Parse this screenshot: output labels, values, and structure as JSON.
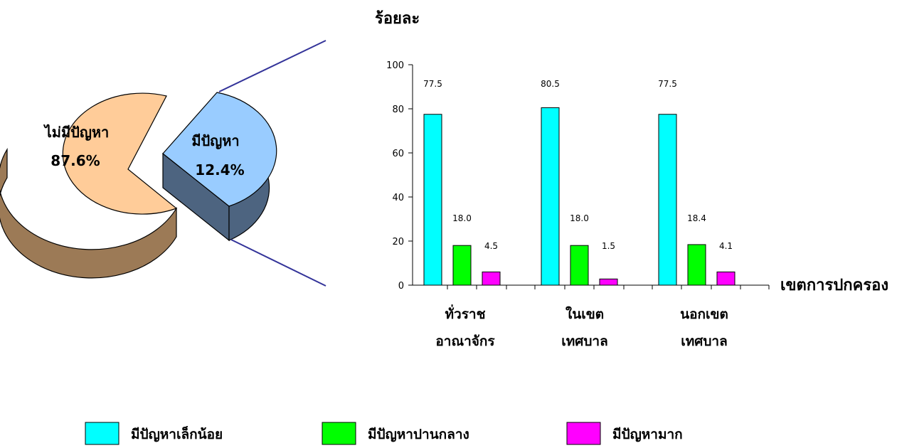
{
  "chart_data": [
    {
      "type": "pie",
      "title": "",
      "slices": [
        {
          "label": "ไม่มีปัญหา",
          "value": 87.6,
          "value_label": "87.6%",
          "color": "#FFCC99",
          "side_color": "#9C7A56"
        },
        {
          "label": "มีปัญหา",
          "value": 12.4,
          "value_label": "12.4%",
          "color": "#99CCFF",
          "side_color": "#4D6480"
        }
      ],
      "exploded": "มีปัญหา",
      "style": "3d"
    },
    {
      "type": "bar",
      "ylabel": "ร้อยละ",
      "xlabel": "เขตการปกครอง",
      "ylim": [
        0,
        100
      ],
      "yticks": [
        "0",
        "20",
        "40",
        "60",
        "80",
        "100"
      ],
      "categories": [
        [
          "ทั่วราช",
          "อาณาจักร"
        ],
        [
          "ในเขต",
          "เทศบาล"
        ],
        [
          "นอกเขต",
          "เทศบาล"
        ]
      ],
      "series": [
        {
          "name": "มีปัญหาเล็กน้อย",
          "color": "#00FFFF",
          "values": [
            77.5,
            80.5,
            77.5
          ],
          "labels": [
            "77.5",
            "80.5",
            "77.5"
          ],
          "display": [
            77.5,
            80.5,
            77.5
          ]
        },
        {
          "name": "มีปัญหาปานกลาง",
          "color": "#00FF00",
          "values": [
            18.0,
            18.0,
            18.4
          ],
          "labels": [
            "18.0",
            "18.0",
            "18.4"
          ],
          "display": [
            18.0,
            18.0,
            18.4
          ]
        },
        {
          "name": "มีปัญหามาก",
          "color": "#FF00FF",
          "values": [
            4.5,
            1.5,
            4.1
          ],
          "labels": [
            "4.5",
            "1.5",
            "4.1"
          ],
          "display": [
            6.0,
            2.8,
            6.0
          ]
        }
      ],
      "grid": false,
      "legend_position": "bottom"
    }
  ]
}
